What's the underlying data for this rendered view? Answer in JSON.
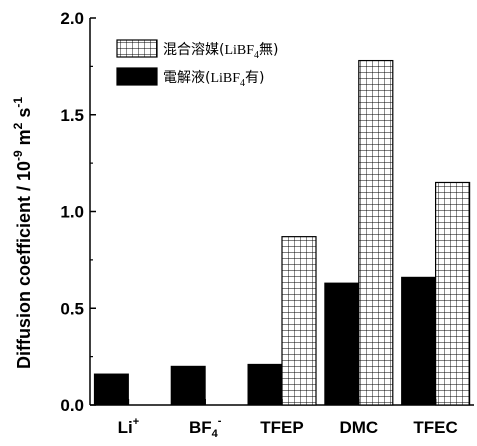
{
  "chart_data": {
    "type": "bar",
    "categories": [
      "Li",
      "BF",
      "TFEP",
      "DMC",
      "TFEC"
    ],
    "category_display": [
      {
        "base": "Li",
        "sup": "+"
      },
      {
        "base": "BF",
        "sub": "4",
        "sup": "-"
      },
      {
        "base": "TFEP"
      },
      {
        "base": "DMC"
      },
      {
        "base": "TFEC"
      }
    ],
    "series": [
      {
        "name": "電解液(LiBF4有)",
        "legend": {
          "pre": "電解液(",
          "mid": "LiBF",
          "sub": "4",
          "post": "有)"
        },
        "pattern": "solid",
        "color": "#000000",
        "values": [
          0.16,
          0.2,
          0.21,
          0.63,
          0.66
        ]
      },
      {
        "name": "混合溶媒(LiBF4無)",
        "legend": {
          "pre": "混合溶媒(",
          "mid": "LiBF",
          "sub": "4",
          "post": "無)"
        },
        "pattern": "grid",
        "color": "#ffffff",
        "values": [
          null,
          null,
          0.87,
          1.78,
          1.15
        ]
      }
    ],
    "ylabel": {
      "main": "Diffusion coefficient / 10",
      "exp1": "-9",
      "mid": " m",
      "exp2": "2",
      "mid2": " s",
      "exp3": "-1"
    },
    "ylim": [
      0.0,
      2.0
    ],
    "yticks": [
      "0.0",
      "0.5",
      "1.0",
      "1.5",
      "2.0"
    ],
    "legend_position": "top-left",
    "grid": false
  }
}
